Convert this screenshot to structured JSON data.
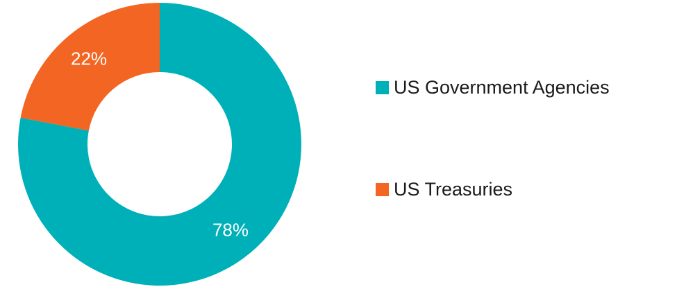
{
  "chart_data": {
    "type": "pie",
    "donut": true,
    "categories": [
      "US Government Agencies",
      "US Treasuries"
    ],
    "values": [
      78,
      22
    ],
    "value_labels": [
      "78%",
      "22%"
    ],
    "colors": [
      "#00B0B9",
      "#F26522"
    ],
    "legend_position": "right",
    "title": ""
  }
}
